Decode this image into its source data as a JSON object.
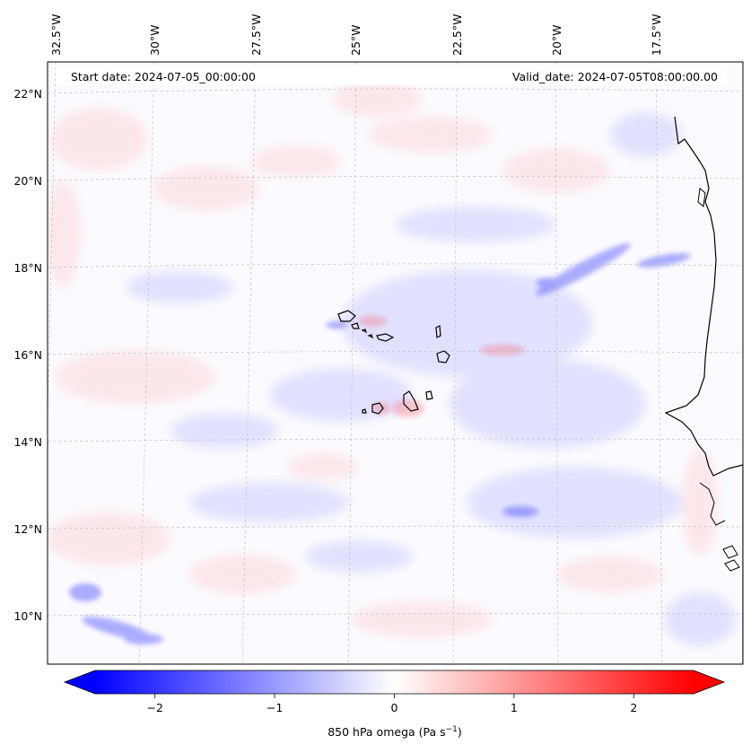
{
  "map": {
    "start_date_label": "Start date: 2024-07-05_00:00:00",
    "valid_date_label": "Valid_date: 2024-07-05T08:00:00.00",
    "longitude_labels": [
      "32.5°W",
      "30°W",
      "27.5°W",
      "25°W",
      "22.5°W",
      "20°W",
      "17.5°W"
    ],
    "latitude_labels": [
      "22°N",
      "20°N",
      "18°N",
      "16°N",
      "14°N",
      "12°N",
      "10°N"
    ],
    "region": "Cape Verde Islands and West African coast",
    "features": [
      "coastline-west-africa",
      "cape-verde-islands"
    ]
  },
  "colorbar": {
    "label": "850 hPa omega (Pa s",
    "label_exponent": "−1",
    "label_close": ")",
    "range": [
      -2.5,
      2.5
    ],
    "ticks": [
      {
        "value": -2,
        "label": "−2"
      },
      {
        "value": -1,
        "label": "−1"
      },
      {
        "value": 0,
        "label": "0"
      },
      {
        "value": 1,
        "label": "1"
      },
      {
        "value": 2,
        "label": "2"
      }
    ],
    "colormap": {
      "low": "#0000ff",
      "mid": "#ffffff",
      "high": "#ff0000"
    },
    "extend": "both"
  }
}
